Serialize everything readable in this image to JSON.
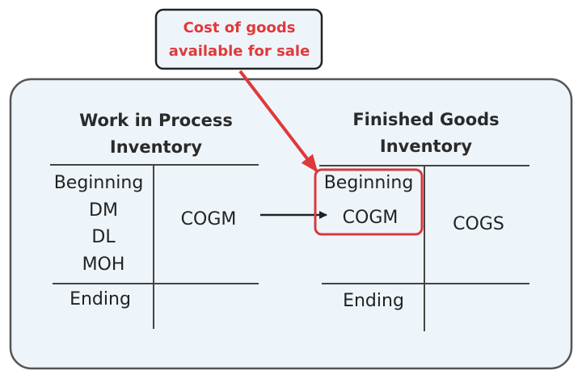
{
  "callout": {
    "line1": "Cost of goods",
    "line2": "available for sale",
    "color": "#e0393b"
  },
  "wip": {
    "title1": "Work in Process",
    "title2": "Inventory",
    "debits": [
      "Beginning",
      "DM",
      "DL",
      "MOH"
    ],
    "credit": "COGM",
    "ending": "Ending"
  },
  "fg": {
    "title1": "Finished Goods",
    "title2": "Inventory",
    "debits": [
      "Beginning",
      "COGM"
    ],
    "credit": "COGS",
    "ending": "Ending"
  },
  "colors": {
    "panel": "#eef5fa",
    "highlight": "#d63b3b"
  }
}
